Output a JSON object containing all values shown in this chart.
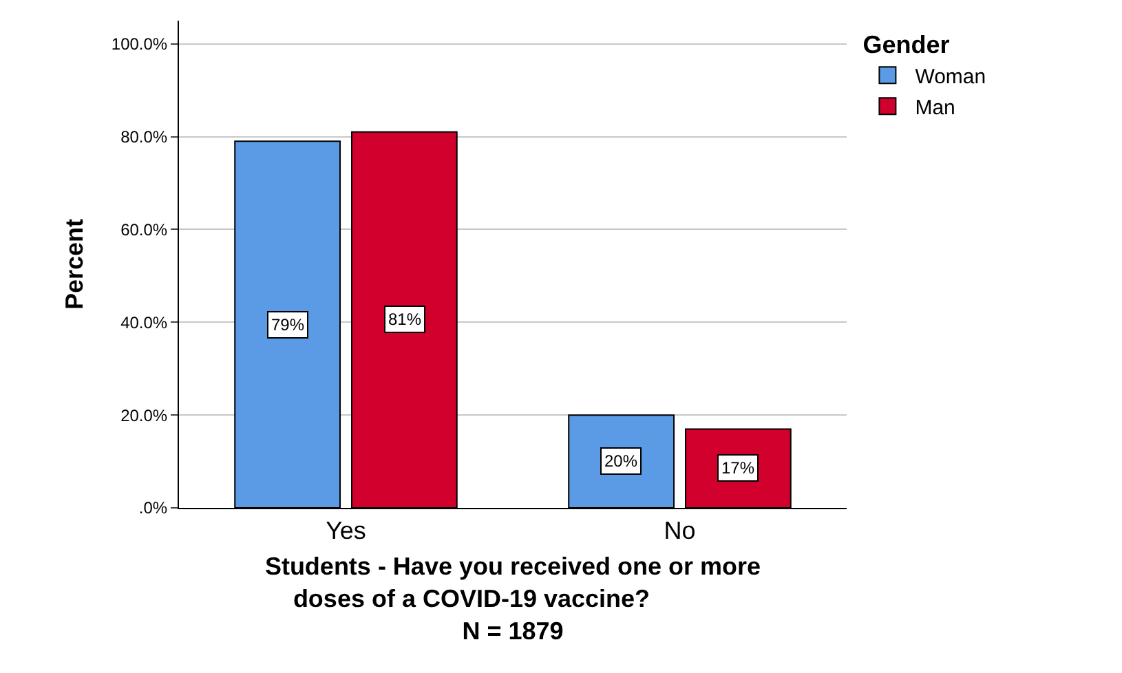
{
  "chart_data": {
    "type": "bar",
    "xlabel": "Students - Have you received one or more doses of a COVID-19 vaccine?                N = 1879",
    "ylabel": "Percent",
    "legend_title": "Gender",
    "categories": [
      "Yes",
      "No"
    ],
    "series": [
      {
        "name": "Woman",
        "color": "#5b9be6",
        "values": [
          79,
          20
        ],
        "value_labels": [
          "79%",
          "20%"
        ]
      },
      {
        "name": "Man",
        "color": "#d2002d",
        "values": [
          81,
          17
        ],
        "value_labels": [
          "81%",
          "17%"
        ]
      }
    ],
    "ylim": [
      0,
      105
    ],
    "yticks": [
      {
        "value": 0,
        "label": ".0%"
      },
      {
        "value": 20,
        "label": "20.0%"
      },
      {
        "value": 40,
        "label": "40.0%"
      },
      {
        "value": 60,
        "label": "60.0%"
      },
      {
        "value": 80,
        "label": "80.0%"
      },
      {
        "value": 100,
        "label": "100.0%"
      }
    ],
    "grid": "y",
    "legend": "top right"
  }
}
